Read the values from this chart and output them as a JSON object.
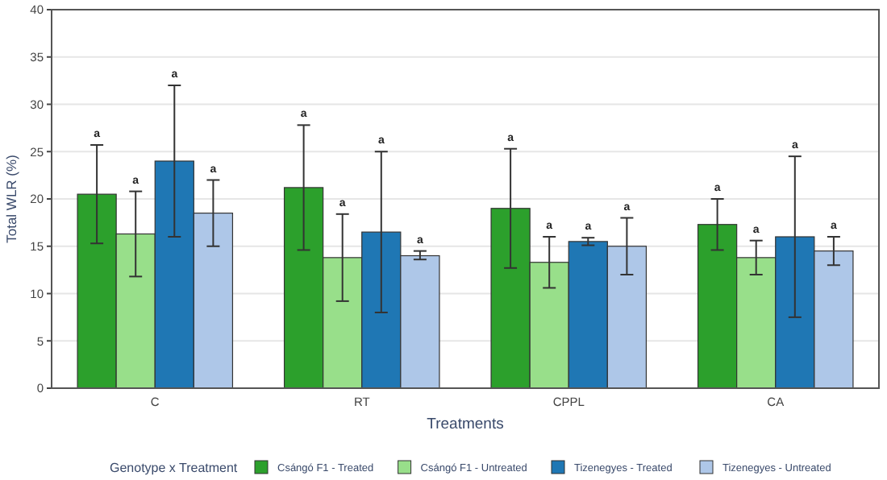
{
  "chart_data": {
    "type": "bar",
    "xlabel": "Treatments",
    "ylabel": "Total WLR (%)",
    "legend_title": "Genotype x Treatment",
    "categories": [
      "C",
      "RT",
      "CPPL",
      "CA"
    ],
    "series": [
      {
        "name": "Csángó F1 - Treated",
        "color": "#2ca02c",
        "values": [
          20.5,
          21.2,
          19,
          17.3
        ],
        "errors": [
          [
            15.3,
            25.7
          ],
          [
            14.6,
            27.8
          ],
          [
            12.7,
            25.3
          ],
          [
            14.6,
            20
          ]
        ]
      },
      {
        "name": "Csángó F1 - Untreated",
        "color": "#98df8a",
        "values": [
          16.3,
          13.8,
          13.3,
          13.8
        ],
        "errors": [
          [
            11.8,
            20.8
          ],
          [
            9.2,
            18.4
          ],
          [
            10.6,
            16
          ],
          [
            12,
            15.6
          ]
        ]
      },
      {
        "name": "Tizenegyes - Treated",
        "color": "#1f77b4",
        "values": [
          24,
          16.5,
          15.5,
          16
        ],
        "errors": [
          [
            16,
            32
          ],
          [
            8,
            25
          ],
          [
            15.1,
            15.9
          ],
          [
            7.5,
            24.5
          ]
        ]
      },
      {
        "name": "Tizenegyes - Untreated",
        "color": "#aec7e8",
        "values": [
          18.5,
          14,
          15,
          14.5
        ],
        "errors": [
          [
            15,
            22
          ],
          [
            13.6,
            14.5
          ],
          [
            12,
            18
          ],
          [
            13,
            16
          ]
        ]
      }
    ],
    "annotations": [
      "a",
      "a",
      "a",
      "a",
      "a",
      "a",
      "a",
      "a",
      "a",
      "a",
      "a",
      "a",
      "a",
      "a",
      "a",
      "a"
    ],
    "ylim": [
      0,
      40
    ],
    "yticks": [
      0,
      5,
      10,
      15,
      20,
      25,
      30,
      35,
      40
    ],
    "grid": "y",
    "legend": "bottom"
  }
}
